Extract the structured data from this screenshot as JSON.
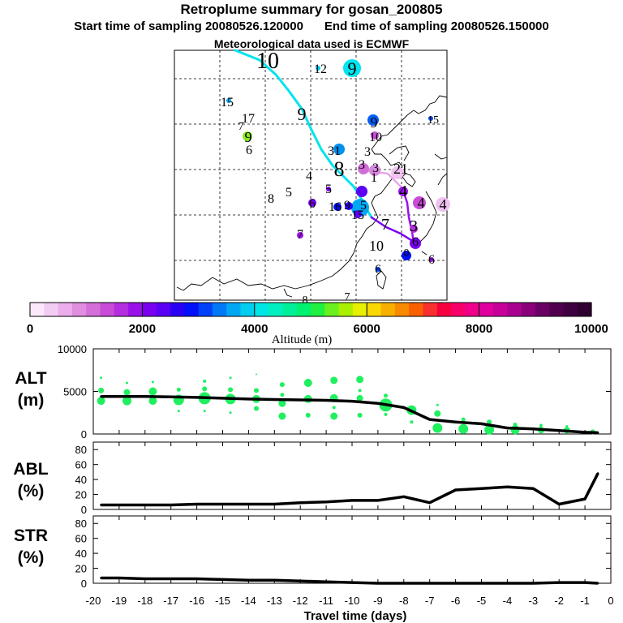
{
  "header": {
    "title": "Retroplume summary for gosan_200805",
    "start_label": "Start time of sampling 20080526.120000",
    "end_label": "End time of sampling 20080526.150000",
    "met_label": "Meteorological data used is ECMWF"
  },
  "colorbar": {
    "ticks": [
      "0",
      "2000",
      "4000",
      "6000",
      "8000",
      "10000"
    ],
    "label": "Altitude  (m)",
    "colors": [
      "#fbe9fb",
      "#f3ccf3",
      "#ebadeb",
      "#e08ee0",
      "#d56fd8",
      "#c84cd8",
      "#b42ee0",
      "#9a12ea",
      "#7a00f0",
      "#5a00f4",
      "#2a00f4",
      "#0010f8",
      "#0040f8",
      "#0078f8",
      "#00a8f4",
      "#00cdf0",
      "#00e6e6",
      "#00f0c0",
      "#00f09a",
      "#00f070",
      "#20f040",
      "#6af020",
      "#aaf000",
      "#e6f000",
      "#f8d800",
      "#f8b000",
      "#f88a00",
      "#f86000",
      "#f83030",
      "#f80040",
      "#f8006a",
      "#f0008a",
      "#e0009e",
      "#c8009a",
      "#aa0090",
      "#8a007a",
      "#6a0064",
      "#50004e",
      "#3e0040",
      "#300030"
    ]
  },
  "map": {
    "labels": [
      {
        "t": "10",
        "x": 330,
        "y": 84,
        "size": 28
      },
      {
        "t": "9",
        "x": 434,
        "y": 92,
        "size": 22
      },
      {
        "t": "12",
        "x": 395,
        "y": 90,
        "size": 16
      },
      {
        "t": "15",
        "x": 280,
        "y": 131,
        "size": 16
      },
      {
        "t": "17",
        "x": 306,
        "y": 151,
        "size": 16
      },
      {
        "t": "9",
        "x": 372,
        "y": 148,
        "size": 22
      },
      {
        "t": "7",
        "x": 297,
        "y": 160,
        "size": 14
      },
      {
        "t": "9",
        "x": 461,
        "y": 157,
        "size": 18
      },
      {
        "t": "15",
        "x": 534,
        "y": 152,
        "size": 14
      },
      {
        "t": "9",
        "x": 306,
        "y": 175,
        "size": 18
      },
      {
        "t": "10",
        "x": 463,
        "y": 174,
        "size": 16
      },
      {
        "t": "6",
        "x": 307,
        "y": 190,
        "size": 16
      },
      {
        "t": "31",
        "x": 412,
        "y": 191,
        "size": 16
      },
      {
        "t": "3",
        "x": 453,
        "y": 192,
        "size": 16
      },
      {
        "t": "8",
        "x": 418,
        "y": 217,
        "size": 26
      },
      {
        "t": "3",
        "x": 446,
        "y": 208,
        "size": 16
      },
      {
        "t": "3",
        "x": 463,
        "y": 212,
        "size": 16
      },
      {
        "t": "21",
        "x": 494,
        "y": 214,
        "size": 18
      },
      {
        "t": "4",
        "x": 381,
        "y": 222,
        "size": 16
      },
      {
        "t": "1",
        "x": 461,
        "y": 224,
        "size": 16
      },
      {
        "t": "5",
        "x": 405,
        "y": 238,
        "size": 16
      },
      {
        "t": "5",
        "x": 356,
        "y": 242,
        "size": 16
      },
      {
        "t": "8",
        "x": 334,
        "y": 250,
        "size": 16
      },
      {
        "t": "4",
        "x": 497,
        "y": 242,
        "size": 20
      },
      {
        "t": "4",
        "x": 519,
        "y": 256,
        "size": 18
      },
      {
        "t": "4",
        "x": 546,
        "y": 258,
        "size": 18
      },
      {
        "t": "6",
        "x": 385,
        "y": 256,
        "size": 16
      },
      {
        "t": "16",
        "x": 413,
        "y": 260,
        "size": 16
      },
      {
        "t": "9",
        "x": 428,
        "y": 258,
        "size": 16
      },
      {
        "t": "5",
        "x": 448,
        "y": 258,
        "size": 16
      },
      {
        "t": "15",
        "x": 441,
        "y": 270,
        "size": 16
      },
      {
        "t": "7",
        "x": 475,
        "y": 283,
        "size": 20
      },
      {
        "t": "3",
        "x": 510,
        "y": 285,
        "size": 20
      },
      {
        "t": "7",
        "x": 370,
        "y": 294,
        "size": 16
      },
      {
        "t": "6",
        "x": 512,
        "y": 303,
        "size": 16
      },
      {
        "t": "10",
        "x": 464,
        "y": 309,
        "size": 18
      },
      {
        "t": "0",
        "x": 501,
        "y": 316,
        "size": 14
      },
      {
        "t": "6",
        "x": 532,
        "y": 325,
        "size": 16
      },
      {
        "t": "6",
        "x": 466,
        "y": 337,
        "size": 16
      },
      {
        "t": "7",
        "x": 428,
        "y": 370,
        "size": 14
      },
      {
        "t": "8",
        "x": 376,
        "y": 374,
        "size": 14
      }
    ]
  },
  "chart_data": [
    {
      "type": "line",
      "name": "ALT",
      "ylabel": "ALT (m)",
      "ylim": [
        0,
        10000
      ],
      "yticks": [
        0,
        5000,
        10000
      ],
      "x": [
        -19.7,
        -19,
        -18,
        -17,
        -16,
        -15,
        -14,
        -13,
        -12,
        -11,
        -10,
        -9,
        -8,
        -7,
        -6,
        -5,
        -4,
        -3,
        -2,
        -1,
        -0.5
      ],
      "values": [
        4400,
        4400,
        4400,
        4350,
        4300,
        4200,
        4100,
        4050,
        4000,
        3950,
        3850,
        3600,
        3100,
        1700,
        1400,
        1200,
        700,
        600,
        400,
        200,
        150
      ],
      "plume_points": [
        {
          "x": -19.7,
          "y": 3900,
          "s": 10
        },
        {
          "x": -19.7,
          "y": 5100,
          "s": 7
        },
        {
          "x": -19.7,
          "y": 6600,
          "s": 3
        },
        {
          "x": -18.7,
          "y": 3900,
          "s": 11
        },
        {
          "x": -18.7,
          "y": 4900,
          "s": 8
        },
        {
          "x": -18.7,
          "y": 6000,
          "s": 3
        },
        {
          "x": -17.7,
          "y": 3900,
          "s": 10
        },
        {
          "x": -17.7,
          "y": 5000,
          "s": 10
        },
        {
          "x": -17.7,
          "y": 6100,
          "s": 3
        },
        {
          "x": -16.7,
          "y": 4000,
          "s": 13
        },
        {
          "x": -16.7,
          "y": 5200,
          "s": 5
        },
        {
          "x": -16.7,
          "y": 2700,
          "s": 3
        },
        {
          "x": -15.7,
          "y": 4200,
          "s": 15
        },
        {
          "x": -15.7,
          "y": 5300,
          "s": 6
        },
        {
          "x": -15.7,
          "y": 6200,
          "s": 4
        },
        {
          "x": -15.7,
          "y": 2700,
          "s": 3
        },
        {
          "x": -14.7,
          "y": 4100,
          "s": 13
        },
        {
          "x": -14.7,
          "y": 5200,
          "s": 6
        },
        {
          "x": -14.7,
          "y": 6600,
          "s": 3
        },
        {
          "x": -14.7,
          "y": 2500,
          "s": 3
        },
        {
          "x": -13.7,
          "y": 4100,
          "s": 10
        },
        {
          "x": -13.7,
          "y": 5100,
          "s": 6
        },
        {
          "x": -13.7,
          "y": 3000,
          "s": 6
        },
        {
          "x": -13.7,
          "y": 7000,
          "s": 2
        },
        {
          "x": -12.7,
          "y": 3600,
          "s": 9
        },
        {
          "x": -12.7,
          "y": 4600,
          "s": 5
        },
        {
          "x": -12.7,
          "y": 5800,
          "s": 6
        },
        {
          "x": -12.7,
          "y": 2100,
          "s": 9
        },
        {
          "x": -11.7,
          "y": 4100,
          "s": 10
        },
        {
          "x": -11.7,
          "y": 6000,
          "s": 10
        },
        {
          "x": -11.7,
          "y": 2200,
          "s": 6
        },
        {
          "x": -10.7,
          "y": 4200,
          "s": 10
        },
        {
          "x": -10.7,
          "y": 6300,
          "s": 9
        },
        {
          "x": -10.7,
          "y": 2100,
          "s": 9
        },
        {
          "x": -10.7,
          "y": 3100,
          "s": 4
        },
        {
          "x": -9.7,
          "y": 4200,
          "s": 8
        },
        {
          "x": -9.7,
          "y": 6400,
          "s": 9
        },
        {
          "x": -9.7,
          "y": 2200,
          "s": 6
        },
        {
          "x": -9.7,
          "y": 5100,
          "s": 4
        },
        {
          "x": -8.7,
          "y": 3400,
          "s": 16
        },
        {
          "x": -8.7,
          "y": 4500,
          "s": 5
        },
        {
          "x": -8.7,
          "y": 2300,
          "s": 4
        },
        {
          "x": -7.7,
          "y": 2800,
          "s": 12
        },
        {
          "x": -7.7,
          "y": 1400,
          "s": 4
        },
        {
          "x": -6.7,
          "y": 700,
          "s": 12
        },
        {
          "x": -6.7,
          "y": 2400,
          "s": 8
        },
        {
          "x": -6.7,
          "y": 3400,
          "s": 3
        },
        {
          "x": -5.7,
          "y": 600,
          "s": 12
        },
        {
          "x": -5.7,
          "y": 1700,
          "s": 5
        },
        {
          "x": -4.7,
          "y": 500,
          "s": 12
        },
        {
          "x": -4.7,
          "y": 1400,
          "s": 6
        },
        {
          "x": -3.7,
          "y": 500,
          "s": 11
        },
        {
          "x": -3.7,
          "y": 1100,
          "s": 5
        },
        {
          "x": -2.7,
          "y": 450,
          "s": 8
        },
        {
          "x": -2.7,
          "y": 1000,
          "s": 4
        },
        {
          "x": -1.7,
          "y": 450,
          "s": 8
        },
        {
          "x": -1.7,
          "y": 900,
          "s": 3
        },
        {
          "x": -0.7,
          "y": 250,
          "s": 6
        }
      ]
    },
    {
      "type": "line",
      "name": "ABL",
      "ylabel": "ABL (%)",
      "ylim": [
        0,
        90
      ],
      "yticks": [
        0,
        20,
        40,
        60,
        80
      ],
      "x": [
        -19.7,
        -19,
        -18,
        -17,
        -16,
        -15,
        -14,
        -13,
        -12,
        -11,
        -10,
        -9,
        -8,
        -7,
        -6,
        -5,
        -4,
        -3,
        -2,
        -1,
        -0.5
      ],
      "values": [
        6,
        6,
        6,
        6,
        7,
        7,
        7,
        7,
        9,
        10,
        12,
        12,
        17,
        9,
        26,
        28,
        30,
        28,
        7,
        14,
        48
      ]
    },
    {
      "type": "line",
      "name": "STR",
      "ylabel": "STR (%)",
      "ylim": [
        0,
        90
      ],
      "yticks": [
        0,
        20,
        40,
        60,
        80
      ],
      "x": [
        -19.7,
        -19,
        -18,
        -17,
        -16,
        -15,
        -14,
        -13,
        -12,
        -11,
        -10,
        -9,
        -8,
        -7,
        -6,
        -5,
        -4,
        -3,
        -2,
        -1,
        -0.5
      ],
      "values": [
        7,
        7,
        6,
        6,
        6,
        5,
        4,
        4,
        3,
        2,
        1,
        0,
        0,
        0,
        0,
        0,
        0,
        0,
        1,
        1,
        0
      ],
      "xlabel": "Travel time (days)",
      "xticks": [
        -20,
        -19,
        -18,
        -17,
        -16,
        -15,
        -14,
        -13,
        -12,
        -11,
        -10,
        -9,
        -8,
        -7,
        -6,
        -5,
        -4,
        -3,
        -2,
        -1,
        0
      ],
      "xticklabels": [
        "-20",
        "-19",
        "-18",
        "-17",
        "-16",
        "-15",
        "-14",
        "-13",
        "-12",
        "-11",
        "-10",
        "-9",
        "-8",
        "-7",
        "-6",
        "-5",
        "-4",
        "-3",
        "-2",
        "-1",
        "0"
      ]
    }
  ]
}
